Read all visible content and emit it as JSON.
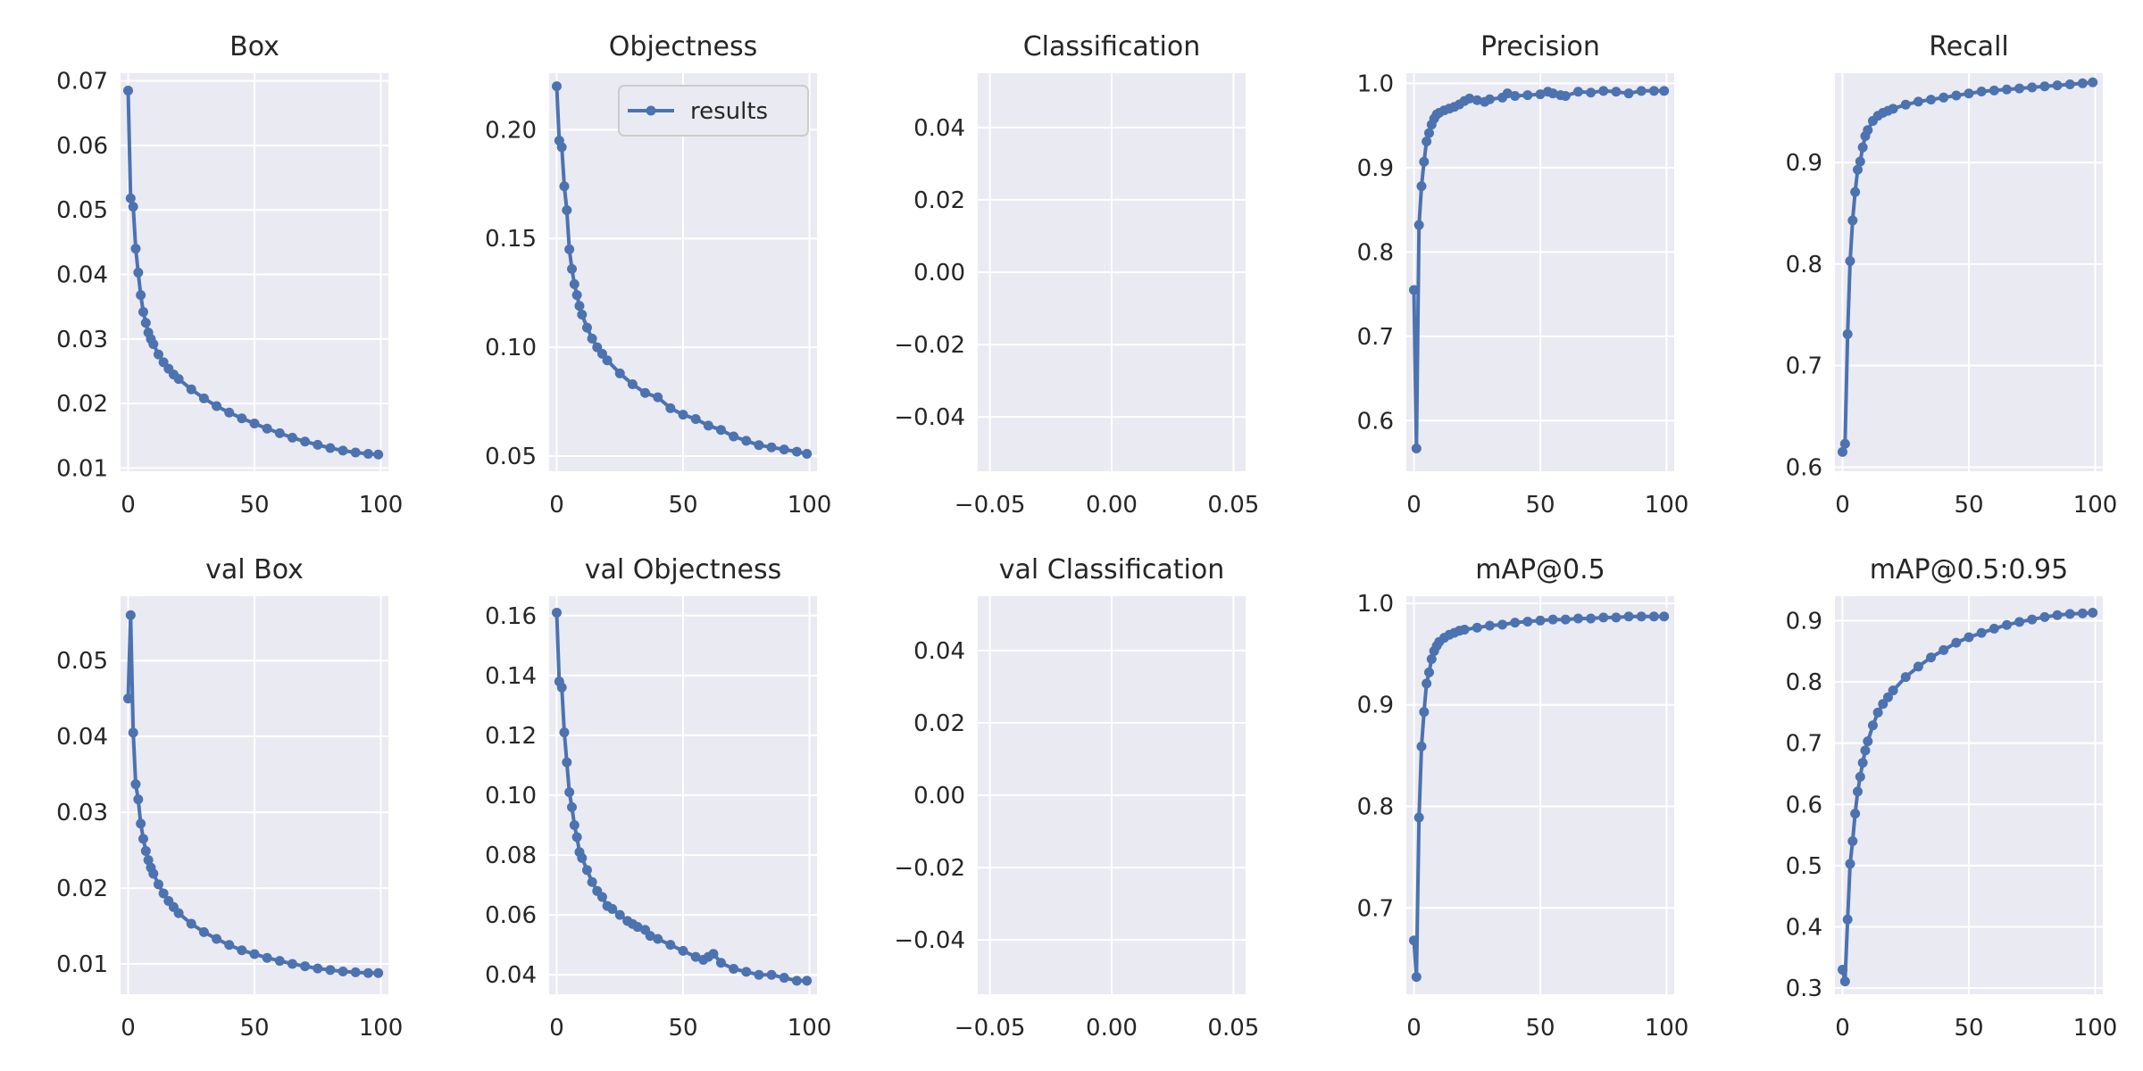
{
  "chart_data": [
    {
      "type": "line",
      "title": "Box",
      "series": [
        {
          "name": "results",
          "x": [
            0,
            1,
            2,
            3,
            4,
            5,
            6,
            7,
            8,
            9,
            10,
            12,
            14,
            16,
            18,
            20,
            25,
            30,
            35,
            40,
            45,
            50,
            55,
            60,
            65,
            70,
            75,
            80,
            85,
            90,
            95,
            99
          ],
          "values": [
            0.0685,
            0.0518,
            0.0505,
            0.044,
            0.0403,
            0.0368,
            0.0342,
            0.0325,
            0.031,
            0.03,
            0.0292,
            0.0276,
            0.0264,
            0.0254,
            0.0245,
            0.0238,
            0.0222,
            0.0208,
            0.0196,
            0.0186,
            0.0177,
            0.0169,
            0.0161,
            0.0154,
            0.0147,
            0.0141,
            0.0136,
            0.0131,
            0.0127,
            0.0124,
            0.0122,
            0.0121
          ]
        }
      ],
      "xlim": [
        -3,
        103
      ],
      "ylim": [
        0.0095,
        0.0712
      ],
      "xticks": [
        0,
        50,
        100
      ],
      "xticklabels": [
        "0",
        "50",
        "100"
      ],
      "yticks": [
        0.01,
        0.02,
        0.03,
        0.04,
        0.05,
        0.06,
        0.07
      ],
      "yticklabels": [
        "0.01",
        "0.02",
        "0.03",
        "0.04",
        "0.05",
        "0.06",
        "0.07"
      ],
      "grid": true
    },
    {
      "type": "line",
      "title": "Objectness",
      "legend": {
        "show": true,
        "position": "upper right",
        "label": "results"
      },
      "series": [
        {
          "name": "results",
          "x": [
            0,
            1,
            2,
            3,
            4,
            5,
            6,
            7,
            8,
            9,
            10,
            12,
            14,
            16,
            18,
            20,
            25,
            30,
            35,
            40,
            45,
            50,
            55,
            60,
            65,
            70,
            75,
            80,
            85,
            90,
            95,
            99
          ],
          "values": [
            0.22,
            0.195,
            0.192,
            0.174,
            0.163,
            0.145,
            0.136,
            0.129,
            0.124,
            0.119,
            0.115,
            0.109,
            0.104,
            0.1,
            0.097,
            0.094,
            0.088,
            0.083,
            0.079,
            0.077,
            0.072,
            0.069,
            0.067,
            0.064,
            0.062,
            0.059,
            0.057,
            0.055,
            0.054,
            0.053,
            0.052,
            0.051
          ]
        }
      ],
      "xlim": [
        -3,
        103
      ],
      "ylim": [
        0.043,
        0.226
      ],
      "xticks": [
        0,
        50,
        100
      ],
      "xticklabels": [
        "0",
        "50",
        "100"
      ],
      "yticks": [
        0.05,
        0.1,
        0.15,
        0.2
      ],
      "yticklabels": [
        "0.05",
        "0.10",
        "0.15",
        "0.20"
      ],
      "grid": true
    },
    {
      "type": "line",
      "title": "Classification",
      "series": [],
      "xlim": [
        -0.055,
        0.055
      ],
      "ylim": [
        -0.055,
        0.055
      ],
      "xticks": [
        -0.05,
        0.0,
        0.05
      ],
      "xticklabels": [
        "−0.05",
        "0.00",
        "0.05"
      ],
      "yticks": [
        -0.04,
        -0.02,
        0.0,
        0.02,
        0.04
      ],
      "yticklabels": [
        "−0.04",
        "−0.02",
        "0.00",
        "0.02",
        "0.04"
      ],
      "grid": true
    },
    {
      "type": "line",
      "title": "Precision",
      "series": [
        {
          "name": "results",
          "x": [
            0,
            1,
            2,
            3,
            4,
            5,
            6,
            7,
            8,
            9,
            10,
            12,
            14,
            16,
            18,
            20,
            22,
            25,
            28,
            30,
            35,
            37,
            40,
            45,
            50,
            53,
            55,
            58,
            60,
            65,
            70,
            75,
            80,
            85,
            90,
            95,
            99
          ],
          "values": [
            0.755,
            0.567,
            0.832,
            0.878,
            0.907,
            0.931,
            0.941,
            0.951,
            0.958,
            0.963,
            0.965,
            0.968,
            0.97,
            0.972,
            0.975,
            0.979,
            0.982,
            0.98,
            0.978,
            0.981,
            0.983,
            0.988,
            0.985,
            0.986,
            0.987,
            0.99,
            0.988,
            0.986,
            0.985,
            0.99,
            0.989,
            0.991,
            0.99,
            0.988,
            0.991,
            0.991,
            0.991
          ]
        }
      ],
      "xlim": [
        -3,
        103
      ],
      "ylim": [
        0.54,
        1.012
      ],
      "xticks": [
        0,
        50,
        100
      ],
      "xticklabels": [
        "0",
        "50",
        "100"
      ],
      "yticks": [
        0.6,
        0.7,
        0.8,
        0.9,
        1.0
      ],
      "yticklabels": [
        "0.6",
        "0.7",
        "0.8",
        "0.9",
        "1.0"
      ],
      "grid": true
    },
    {
      "type": "line",
      "title": "Recall",
      "series": [
        {
          "name": "results",
          "x": [
            0,
            1,
            2,
            3,
            4,
            5,
            6,
            7,
            8,
            9,
            10,
            12,
            14,
            16,
            18,
            20,
            25,
            30,
            35,
            40,
            45,
            50,
            55,
            60,
            65,
            70,
            75,
            80,
            85,
            90,
            95,
            99
          ],
          "values": [
            0.615,
            0.623,
            0.731,
            0.803,
            0.843,
            0.871,
            0.893,
            0.901,
            0.915,
            0.926,
            0.932,
            0.941,
            0.946,
            0.949,
            0.951,
            0.953,
            0.957,
            0.96,
            0.962,
            0.964,
            0.966,
            0.968,
            0.97,
            0.971,
            0.972,
            0.973,
            0.974,
            0.975,
            0.976,
            0.977,
            0.978,
            0.979
          ]
        }
      ],
      "xlim": [
        -3,
        103
      ],
      "ylim": [
        0.596,
        0.988
      ],
      "xticks": [
        0,
        50,
        100
      ],
      "xticklabels": [
        "0",
        "50",
        "100"
      ],
      "yticks": [
        0.6,
        0.7,
        0.8,
        0.9
      ],
      "yticklabels": [
        "0.6",
        "0.7",
        "0.8",
        "0.9"
      ],
      "grid": true
    },
    {
      "type": "line",
      "title": "val Box",
      "series": [
        {
          "name": "results",
          "x": [
            0,
            1,
            2,
            3,
            4,
            5,
            6,
            7,
            8,
            9,
            10,
            12,
            14,
            16,
            18,
            20,
            25,
            30,
            35,
            40,
            45,
            50,
            55,
            60,
            65,
            70,
            75,
            80,
            85,
            90,
            95,
            99
          ],
          "values": [
            0.045,
            0.056,
            0.0405,
            0.0337,
            0.0317,
            0.0285,
            0.0265,
            0.0249,
            0.0237,
            0.0227,
            0.0219,
            0.0205,
            0.0193,
            0.0183,
            0.0175,
            0.0167,
            0.0153,
            0.0142,
            0.0133,
            0.0125,
            0.0118,
            0.0113,
            0.0108,
            0.0104,
            0.01,
            0.0097,
            0.0094,
            0.0092,
            0.009,
            0.0089,
            0.0088,
            0.0088
          ]
        }
      ],
      "xlim": [
        -3,
        103
      ],
      "ylim": [
        0.006,
        0.0585
      ],
      "xticks": [
        0,
        50,
        100
      ],
      "xticklabels": [
        "0",
        "50",
        "100"
      ],
      "yticks": [
        0.01,
        0.02,
        0.03,
        0.04,
        0.05
      ],
      "yticklabels": [
        "0.01",
        "0.02",
        "0.03",
        "0.04",
        "0.05"
      ],
      "grid": true
    },
    {
      "type": "line",
      "title": "val Objectness",
      "series": [
        {
          "name": "results",
          "x": [
            0,
            1,
            2,
            3,
            4,
            5,
            6,
            7,
            8,
            9,
            10,
            12,
            14,
            16,
            18,
            20,
            22,
            25,
            28,
            30,
            32,
            35,
            37,
            40,
            45,
            50,
            55,
            58,
            60,
            62,
            65,
            70,
            75,
            80,
            85,
            90,
            95,
            99
          ],
          "values": [
            0.161,
            0.138,
            0.136,
            0.121,
            0.111,
            0.101,
            0.096,
            0.09,
            0.086,
            0.081,
            0.079,
            0.075,
            0.071,
            0.068,
            0.066,
            0.063,
            0.062,
            0.06,
            0.058,
            0.057,
            0.056,
            0.055,
            0.053,
            0.052,
            0.05,
            0.048,
            0.046,
            0.045,
            0.046,
            0.047,
            0.044,
            0.042,
            0.041,
            0.04,
            0.04,
            0.039,
            0.038,
            0.038
          ]
        }
      ],
      "xlim": [
        -3,
        103
      ],
      "ylim": [
        0.0335,
        0.1665
      ],
      "xticks": [
        0,
        50,
        100
      ],
      "xticklabels": [
        "0",
        "50",
        "100"
      ],
      "yticks": [
        0.04,
        0.06,
        0.08,
        0.1,
        0.12,
        0.14,
        0.16
      ],
      "yticklabels": [
        "0.04",
        "0.06",
        "0.08",
        "0.10",
        "0.12",
        "0.14",
        "0.16"
      ],
      "grid": true
    },
    {
      "type": "line",
      "title": "val Classification",
      "series": [],
      "xlim": [
        -0.055,
        0.055
      ],
      "ylim": [
        -0.055,
        0.055
      ],
      "xticks": [
        -0.05,
        0.0,
        0.05
      ],
      "xticklabels": [
        "−0.05",
        "0.00",
        "0.05"
      ],
      "yticks": [
        -0.04,
        -0.02,
        0.0,
        0.02,
        0.04
      ],
      "yticklabels": [
        "−0.04",
        "−0.02",
        "0.00",
        "0.02",
        "0.04"
      ],
      "grid": true
    },
    {
      "type": "line",
      "title": "mAP@0.5",
      "series": [
        {
          "name": "results",
          "x": [
            0,
            1,
            2,
            3,
            4,
            5,
            6,
            7,
            8,
            9,
            10,
            12,
            14,
            16,
            18,
            20,
            25,
            30,
            35,
            40,
            45,
            50,
            55,
            60,
            65,
            70,
            75,
            80,
            85,
            90,
            95,
            99
          ],
          "values": [
            0.668,
            0.632,
            0.789,
            0.859,
            0.893,
            0.921,
            0.932,
            0.945,
            0.953,
            0.958,
            0.962,
            0.966,
            0.969,
            0.971,
            0.973,
            0.974,
            0.976,
            0.978,
            0.979,
            0.981,
            0.982,
            0.983,
            0.984,
            0.984,
            0.985,
            0.985,
            0.986,
            0.986,
            0.987,
            0.987,
            0.987,
            0.987
          ]
        }
      ],
      "xlim": [
        -3,
        103
      ],
      "ylim": [
        0.615,
        1.007
      ],
      "xticks": [
        0,
        50,
        100
      ],
      "xticklabels": [
        "0",
        "50",
        "100"
      ],
      "yticks": [
        0.7,
        0.8,
        0.9,
        1.0
      ],
      "yticklabels": [
        "0.7",
        "0.8",
        "0.9",
        "1.0"
      ],
      "grid": true
    },
    {
      "type": "line",
      "title": "mAP@0.5:0.95",
      "series": [
        {
          "name": "results",
          "x": [
            0,
            1,
            2,
            3,
            4,
            5,
            6,
            7,
            8,
            9,
            10,
            12,
            14,
            16,
            18,
            20,
            25,
            30,
            35,
            40,
            45,
            50,
            55,
            60,
            65,
            70,
            75,
            80,
            85,
            90,
            95,
            99
          ],
          "values": [
            0.33,
            0.311,
            0.412,
            0.503,
            0.54,
            0.585,
            0.621,
            0.645,
            0.668,
            0.688,
            0.703,
            0.729,
            0.75,
            0.764,
            0.775,
            0.786,
            0.808,
            0.825,
            0.84,
            0.852,
            0.864,
            0.873,
            0.88,
            0.887,
            0.893,
            0.898,
            0.902,
            0.906,
            0.909,
            0.911,
            0.912,
            0.913
          ]
        }
      ],
      "xlim": [
        -3,
        103
      ],
      "ylim": [
        0.29,
        0.94
      ],
      "xticks": [
        0,
        50,
        100
      ],
      "xticklabels": [
        "0",
        "50",
        "100"
      ],
      "yticks": [
        0.3,
        0.4,
        0.5,
        0.6,
        0.7,
        0.8,
        0.9
      ],
      "yticklabels": [
        "0.3",
        "0.4",
        "0.5",
        "0.6",
        "0.7",
        "0.8",
        "0.9"
      ],
      "grid": true
    }
  ],
  "colors": {
    "line": "#4c72b0",
    "panel_bg": "#eaeaf2",
    "grid": "#ffffff",
    "text": "#262626",
    "figure_bg": "#ffffff"
  }
}
